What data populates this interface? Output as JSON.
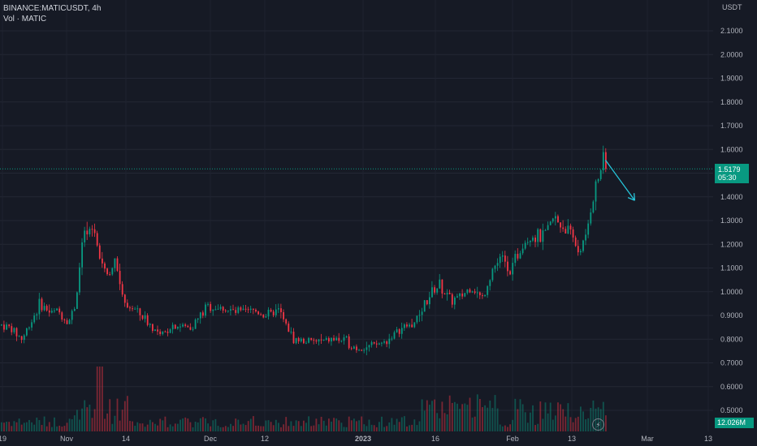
{
  "header": {
    "symbol_line": "BINANCE:MATICUSDT, 4h",
    "volume_line": "Vol · MATIC"
  },
  "price_scale": {
    "currency": "USDT",
    "labels": [
      "2.1000",
      "2.0000",
      "1.9000",
      "1.8000",
      "1.7000",
      "1.6000",
      "1.5000",
      "1.4000",
      "1.3000",
      "1.2000",
      "1.1000",
      "1.0000",
      "0.9000",
      "0.8000",
      "0.7000",
      "0.6000",
      "0.5000"
    ]
  },
  "time_scale": {
    "labels": [
      "19",
      "Nov",
      "14",
      "Dec",
      "12",
      "2023",
      "16",
      "Feb",
      "13",
      "Mar",
      "13"
    ]
  },
  "last_price": {
    "value": "1.5179",
    "countdown": "05:30"
  },
  "volume_value": "12.026M",
  "colors": {
    "up": "#089981",
    "down": "#f23645",
    "background": "#161a25",
    "arrow": "#26c6da"
  },
  "chart_data": {
    "type": "candlestick",
    "title": "BINANCE:MATICUSDT, 4h",
    "ylabel": "USDT",
    "ylim": [
      0.45,
      2.15
    ],
    "grid": true,
    "anchors": [
      {
        "t": 0,
        "price": 0.86
      },
      {
        "t": 0.012,
        "price": 0.85
      },
      {
        "t": 0.03,
        "price": 0.8
      },
      {
        "t": 0.055,
        "price": 0.95
      },
      {
        "t": 0.07,
        "price": 0.91
      },
      {
        "t": 0.08,
        "price": 0.92
      },
      {
        "t": 0.095,
        "price": 0.87
      },
      {
        "t": 0.105,
        "price": 0.95
      },
      {
        "t": 0.115,
        "price": 1.22
      },
      {
        "t": 0.125,
        "price": 1.25
      },
      {
        "t": 0.13,
        "price": 1.27
      },
      {
        "t": 0.14,
        "price": 1.15
      },
      {
        "t": 0.15,
        "price": 1.07
      },
      {
        "t": 0.16,
        "price": 1.12
      },
      {
        "t": 0.175,
        "price": 0.95
      },
      {
        "t": 0.19,
        "price": 0.92
      },
      {
        "t": 0.21,
        "price": 0.86
      },
      {
        "t": 0.225,
        "price": 0.81
      },
      {
        "t": 0.24,
        "price": 0.86
      },
      {
        "t": 0.265,
        "price": 0.85
      },
      {
        "t": 0.275,
        "price": 0.88
      },
      {
        "t": 0.29,
        "price": 0.94
      },
      {
        "t": 0.31,
        "price": 0.93
      },
      {
        "t": 0.33,
        "price": 0.91
      },
      {
        "t": 0.355,
        "price": 0.92
      },
      {
        "t": 0.375,
        "price": 0.9
      },
      {
        "t": 0.39,
        "price": 0.92
      },
      {
        "t": 0.4,
        "price": 0.86
      },
      {
        "t": 0.41,
        "price": 0.8
      },
      {
        "t": 0.425,
        "price": 0.79
      },
      {
        "t": 0.45,
        "price": 0.79
      },
      {
        "t": 0.47,
        "price": 0.8
      },
      {
        "t": 0.485,
        "price": 0.79
      },
      {
        "t": 0.5,
        "price": 0.76
      },
      {
        "t": 0.52,
        "price": 0.77
      },
      {
        "t": 0.54,
        "price": 0.79
      },
      {
        "t": 0.56,
        "price": 0.84
      },
      {
        "t": 0.58,
        "price": 0.87
      },
      {
        "t": 0.6,
        "price": 0.98
      },
      {
        "t": 0.615,
        "price": 1.03
      },
      {
        "t": 0.63,
        "price": 0.96
      },
      {
        "t": 0.645,
        "price": 0.98
      },
      {
        "t": 0.66,
        "price": 1.02
      },
      {
        "t": 0.675,
        "price": 0.97
      },
      {
        "t": 0.69,
        "price": 1.1
      },
      {
        "t": 0.705,
        "price": 1.15
      },
      {
        "t": 0.715,
        "price": 1.09
      },
      {
        "t": 0.73,
        "price": 1.2
      },
      {
        "t": 0.745,
        "price": 1.24
      },
      {
        "t": 0.76,
        "price": 1.22
      },
      {
        "t": 0.775,
        "price": 1.31
      },
      {
        "t": 0.79,
        "price": 1.27
      },
      {
        "t": 0.8,
        "price": 1.24
      },
      {
        "t": 0.81,
        "price": 1.17
      },
      {
        "t": 0.82,
        "price": 1.22
      },
      {
        "t": 0.83,
        "price": 1.4
      },
      {
        "t": 0.84,
        "price": 1.5
      },
      {
        "t": 0.845,
        "price": 1.56
      },
      {
        "t": 0.85,
        "price": 1.52
      }
    ],
    "last_close": 1.5179,
    "projection_arrow": {
      "from": {
        "t": 0.849,
        "price": 1.555
      },
      "to": {
        "t": 0.89,
        "price": 1.385
      }
    }
  }
}
